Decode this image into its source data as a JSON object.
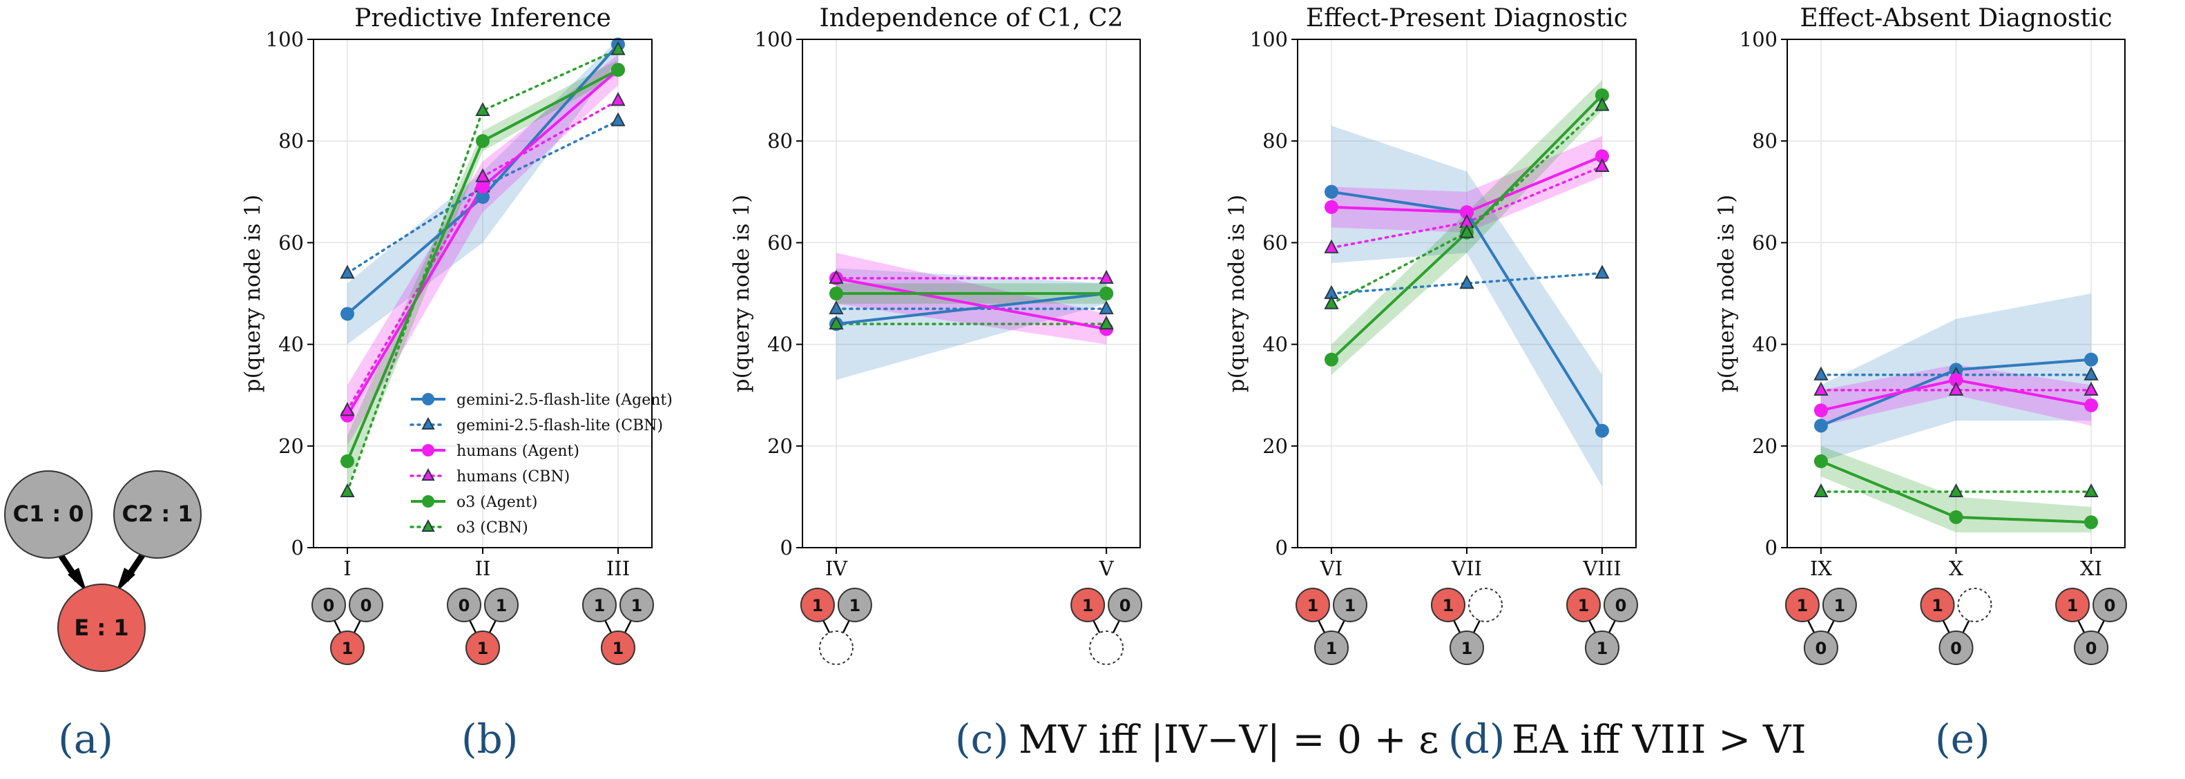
{
  "colors": {
    "gemini": "#2f7bbd",
    "humans": "#f01ff0",
    "o3": "#2ca02c",
    "effect_node": "#e8615a",
    "cause_node": "#a9a9a9",
    "caption_label": "#1f4e79"
  },
  "ylabel": "p(query node is 1)",
  "ylim": [
    0,
    100
  ],
  "yticks": [
    0,
    20,
    40,
    60,
    80,
    100
  ],
  "legend": [
    {
      "label": "gemini-2.5-flash-lite (Agent)",
      "model": "gemini",
      "style": "agent"
    },
    {
      "label": "gemini-2.5-flash-lite (CBN)",
      "model": "gemini",
      "style": "cbn"
    },
    {
      "label": "humans (Agent)",
      "model": "humans",
      "style": "agent"
    },
    {
      "label": "humans (CBN)",
      "model": "humans",
      "style": "cbn"
    },
    {
      "label": "o3 (Agent)",
      "model": "o3",
      "style": "agent"
    },
    {
      "label": "o3 (CBN)",
      "model": "o3",
      "style": "cbn"
    }
  ],
  "graph_a": {
    "c1": "C1 : 0",
    "c2": "C2 : 1",
    "e": "E : 1",
    "label": "(a)"
  },
  "chart_data": [
    {
      "type": "line",
      "title": "Predictive Inference",
      "caption_label": "(b)",
      "caption_text": "",
      "categories": [
        "I",
        "II",
        "III"
      ],
      "series": [
        {
          "name": "gemini-2.5-flash-lite (Agent)",
          "model": "gemini",
          "style": "agent",
          "values": [
            46,
            69,
            99
          ],
          "band": [
            [
              40,
              52
            ],
            [
              60,
              74
            ],
            [
              96,
              100
            ]
          ]
        },
        {
          "name": "gemini-2.5-flash-lite (CBN)",
          "model": "gemini",
          "style": "cbn",
          "values": [
            54,
            71,
            84
          ]
        },
        {
          "name": "humans (Agent)",
          "model": "humans",
          "style": "agent",
          "values": [
            26,
            71,
            94
          ],
          "band": [
            [
              20,
              32
            ],
            [
              66,
              76
            ],
            [
              91,
              97
            ]
          ]
        },
        {
          "name": "humans (CBN)",
          "model": "humans",
          "style": "cbn",
          "values": [
            27,
            73,
            88
          ]
        },
        {
          "name": "o3 (Agent)",
          "model": "o3",
          "style": "agent",
          "values": [
            17,
            80,
            94
          ],
          "band": [
            [
              12,
              22
            ],
            [
              78,
              82
            ],
            [
              93,
              96
            ]
          ]
        },
        {
          "name": "o3 (CBN)",
          "model": "o3",
          "style": "cbn",
          "values": [
            11,
            86,
            98
          ]
        }
      ],
      "graphs": [
        {
          "top": [
            "0",
            "0"
          ],
          "bottom": "1",
          "bottom_color": "effect"
        },
        {
          "top": [
            "0",
            "1"
          ],
          "bottom": "1",
          "bottom_color": "effect"
        },
        {
          "top": [
            "1",
            "1"
          ],
          "bottom": "1",
          "bottom_color": "effect"
        }
      ]
    },
    {
      "type": "line",
      "title": "Independence of C1, C2",
      "caption_label": "(c)",
      "caption_text": "MV iff |IV−V| = 0 + ε",
      "categories": [
        "IV",
        "V"
      ],
      "series": [
        {
          "name": "gemini-2.5-flash-lite (Agent)",
          "model": "gemini",
          "style": "agent",
          "values": [
            44,
            50
          ],
          "band": [
            [
              33,
              55
            ],
            [
              48,
              52
            ]
          ]
        },
        {
          "name": "gemini-2.5-flash-lite (CBN)",
          "model": "gemini",
          "style": "cbn",
          "values": [
            47,
            47
          ]
        },
        {
          "name": "humans (Agent)",
          "model": "humans",
          "style": "agent",
          "values": [
            53,
            43
          ],
          "band": [
            [
              48,
              58
            ],
            [
              40,
              46
            ]
          ]
        },
        {
          "name": "humans (CBN)",
          "model": "humans",
          "style": "cbn",
          "values": [
            53,
            53
          ]
        },
        {
          "name": "o3 (Agent)",
          "model": "o3",
          "style": "agent",
          "values": [
            50,
            50
          ],
          "band": [
            [
              48,
              52
            ],
            [
              48,
              52
            ]
          ]
        },
        {
          "name": "o3 (CBN)",
          "model": "o3",
          "style": "cbn",
          "values": [
            44,
            44
          ]
        }
      ],
      "graphs": [
        {
          "top": [
            "1",
            "1"
          ],
          "top_colors": [
            "effect",
            "cause"
          ],
          "bottom": "",
          "bottom_color": "empty"
        },
        {
          "top": [
            "1",
            "0"
          ],
          "top_colors": [
            "effect",
            "cause"
          ],
          "bottom": "",
          "bottom_color": "empty"
        }
      ]
    },
    {
      "type": "line",
      "title": "Effect-Present Diagnostic",
      "caption_label": "(d)",
      "caption_text": "EA iff VIII > VI",
      "categories": [
        "VI",
        "VII",
        "VIII"
      ],
      "series": [
        {
          "name": "gemini-2.5-flash-lite (Agent)",
          "model": "gemini",
          "style": "agent",
          "values": [
            70,
            66,
            23
          ],
          "band": [
            [
              56,
              83
            ],
            [
              58,
              74
            ],
            [
              12,
              34
            ]
          ]
        },
        {
          "name": "gemini-2.5-flash-lite (CBN)",
          "model": "gemini",
          "style": "cbn",
          "values": [
            50,
            52,
            54
          ]
        },
        {
          "name": "humans (Agent)",
          "model": "humans",
          "style": "agent",
          "values": [
            67,
            66,
            77
          ],
          "band": [
            [
              63,
              71
            ],
            [
              62,
              70
            ],
            [
              73,
              81
            ]
          ]
        },
        {
          "name": "humans (CBN)",
          "model": "humans",
          "style": "cbn",
          "values": [
            59,
            64,
            75
          ]
        },
        {
          "name": "o3 (Agent)",
          "model": "o3",
          "style": "agent",
          "values": [
            37,
            62,
            89
          ],
          "band": [
            [
              34,
              40
            ],
            [
              58,
              66
            ],
            [
              86,
              92
            ]
          ]
        },
        {
          "name": "o3 (CBN)",
          "model": "o3",
          "style": "cbn",
          "values": [
            48,
            62,
            87
          ]
        }
      ],
      "graphs": [
        {
          "top": [
            "1",
            "1"
          ],
          "top_colors": [
            "effect",
            "cause"
          ],
          "bottom": "1",
          "bottom_color": "cause"
        },
        {
          "top": [
            "1",
            ""
          ],
          "top_colors": [
            "effect",
            "empty"
          ],
          "bottom": "1",
          "bottom_color": "cause"
        },
        {
          "top": [
            "1",
            "0"
          ],
          "top_colors": [
            "effect",
            "cause"
          ],
          "bottom": "1",
          "bottom_color": "cause"
        }
      ]
    },
    {
      "type": "line",
      "title": "Effect-Absent Diagnostic",
      "caption_label": "(e)",
      "caption_text": "",
      "categories": [
        "IX",
        "X",
        "XI"
      ],
      "series": [
        {
          "name": "gemini-2.5-flash-lite (Agent)",
          "model": "gemini",
          "style": "agent",
          "values": [
            24,
            35,
            37
          ],
          "band": [
            [
              17,
              32
            ],
            [
              25,
              45
            ],
            [
              25,
              50
            ]
          ]
        },
        {
          "name": "gemini-2.5-flash-lite (CBN)",
          "model": "gemini",
          "style": "cbn",
          "values": [
            34,
            34,
            34
          ]
        },
        {
          "name": "humans (Agent)",
          "model": "humans",
          "style": "agent",
          "values": [
            27,
            33,
            28
          ],
          "band": [
            [
              24,
              31
            ],
            [
              30,
              36
            ],
            [
              24,
              32
            ]
          ]
        },
        {
          "name": "humans (CBN)",
          "model": "humans",
          "style": "cbn",
          "values": [
            31,
            31,
            31
          ]
        },
        {
          "name": "o3 (Agent)",
          "model": "o3",
          "style": "agent",
          "values": [
            17,
            6,
            5
          ],
          "band": [
            [
              14,
              20
            ],
            [
              3,
              10
            ],
            [
              3,
              8
            ]
          ]
        },
        {
          "name": "o3 (CBN)",
          "model": "o3",
          "style": "cbn",
          "values": [
            11,
            11,
            11
          ]
        }
      ],
      "graphs": [
        {
          "top": [
            "1",
            "1"
          ],
          "top_colors": [
            "effect",
            "cause"
          ],
          "bottom": "0",
          "bottom_color": "cause"
        },
        {
          "top": [
            "1",
            ""
          ],
          "top_colors": [
            "effect",
            "empty"
          ],
          "bottom": "0",
          "bottom_color": "cause"
        },
        {
          "top": [
            "1",
            "0"
          ],
          "top_colors": [
            "effect",
            "cause"
          ],
          "bottom": "0",
          "bottom_color": "cause"
        }
      ]
    }
  ]
}
